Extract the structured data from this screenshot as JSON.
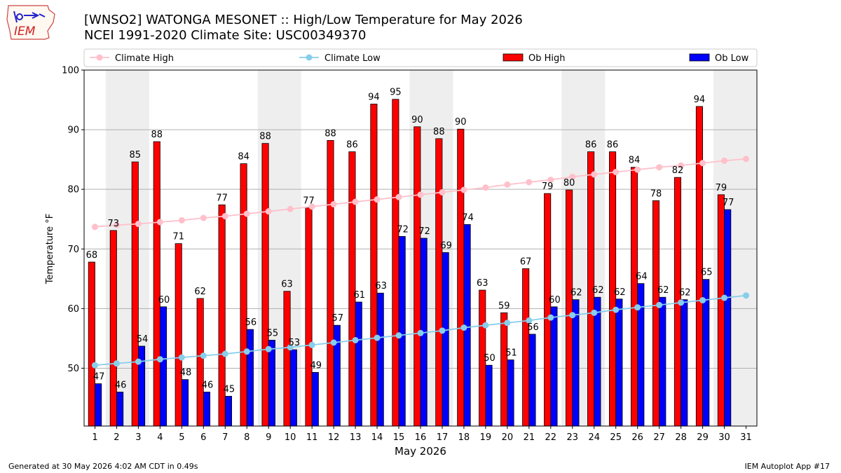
{
  "header": {
    "title_line1": "[WNSO2] WATONGA MESONET :: High/Low Temperature for May 2026",
    "title_line2": "NCEI 1991-2020 Climate Site: USC00349370",
    "logo_text": "IEM"
  },
  "footer": {
    "left": "Generated at 30 May 2026 4:02 AM CDT in 0.49s",
    "right": "IEM Autoplot App #17"
  },
  "colors": {
    "ob_high": "#ff0000",
    "ob_low": "#0000ff",
    "climate_high": "#ffc0cb",
    "climate_low": "#87ceeb",
    "weekend_shade": "#eeeeee",
    "grid": "#b0b0b0"
  },
  "chart_data": {
    "type": "bar",
    "xlabel": "May 2026",
    "ylabel": "Temperature °F",
    "ylim": [
      40.3,
      100
    ],
    "xlim": [
      0.5,
      31.5
    ],
    "yticks": [
      50,
      60,
      70,
      80,
      90,
      100
    ],
    "grid": "y-major",
    "legend_position": "top",
    "days": [
      1,
      2,
      3,
      4,
      5,
      6,
      7,
      8,
      9,
      10,
      11,
      12,
      13,
      14,
      15,
      16,
      17,
      18,
      19,
      20,
      21,
      22,
      23,
      24,
      25,
      26,
      27,
      28,
      29,
      30,
      31
    ],
    "shaded_days": [
      [
        2,
        3
      ],
      [
        9,
        10
      ],
      [
        16,
        17
      ],
      [
        23,
        24
      ],
      [
        30,
        31
      ]
    ],
    "series": [
      {
        "name": "Ob High",
        "kind": "bar",
        "values": [
          67.8,
          73.1,
          84.6,
          88,
          70.9,
          61.7,
          77.4,
          84.3,
          87.7,
          62.9,
          76.9,
          88.2,
          86.3,
          94.3,
          95.1,
          90.5,
          88.5,
          90.1,
          63.1,
          59.3,
          66.7,
          79.3,
          79.9,
          86.3,
          86.3,
          83.7,
          78.1,
          82,
          93.9,
          79.1,
          null
        ],
        "labels": [
          "68",
          "73",
          "85",
          "88",
          "71",
          "62",
          "77",
          "84",
          "88",
          "63",
          "77",
          "88",
          "86",
          "94",
          "95",
          "90",
          "88",
          "90",
          "63",
          "59",
          "67",
          "79",
          "80",
          "86",
          "86",
          "84",
          "78",
          "82",
          "94",
          "79",
          ""
        ]
      },
      {
        "name": "Ob Low",
        "kind": "bar",
        "values": [
          47.4,
          46,
          53.7,
          60.3,
          48.1,
          46,
          45.3,
          56.5,
          54.7,
          53.1,
          49.3,
          57.2,
          61.1,
          62.6,
          72.1,
          71.8,
          69.4,
          74.1,
          50.5,
          51.4,
          55.7,
          60.3,
          61.5,
          61.9,
          61.6,
          64.2,
          61.9,
          61.5,
          64.9,
          76.6,
          null
        ],
        "labels": [
          "47",
          "46",
          "54",
          "60",
          "48",
          "46",
          "45",
          "56",
          "55",
          "53",
          "49",
          "57",
          "61",
          "63",
          "72",
          "72",
          "69",
          "74",
          "50",
          "51",
          "56",
          "60",
          "62",
          "62",
          "62",
          "64",
          "62",
          "62",
          "65",
          "77",
          ""
        ]
      },
      {
        "name": "Climate High",
        "kind": "line",
        "values": [
          73.7,
          74,
          74.2,
          74.5,
          74.8,
          75.2,
          75.5,
          75.9,
          76.3,
          76.7,
          77.1,
          77.5,
          77.9,
          78.3,
          78.7,
          79.1,
          79.5,
          79.9,
          80.3,
          80.8,
          81.2,
          81.6,
          82.1,
          82.5,
          82.9,
          83.3,
          83.7,
          84,
          84.4,
          84.8,
          85.1
        ]
      },
      {
        "name": "Climate Low",
        "kind": "line",
        "values": [
          50.5,
          50.8,
          51.1,
          51.5,
          51.8,
          52.1,
          52.4,
          52.8,
          53.2,
          53.5,
          53.9,
          54.3,
          54.7,
          55.1,
          55.5,
          55.9,
          56.3,
          56.8,
          57.2,
          57.6,
          58,
          58.5,
          58.9,
          59.3,
          59.8,
          60.2,
          60.6,
          61,
          61.4,
          61.8,
          62.2
        ]
      }
    ]
  }
}
